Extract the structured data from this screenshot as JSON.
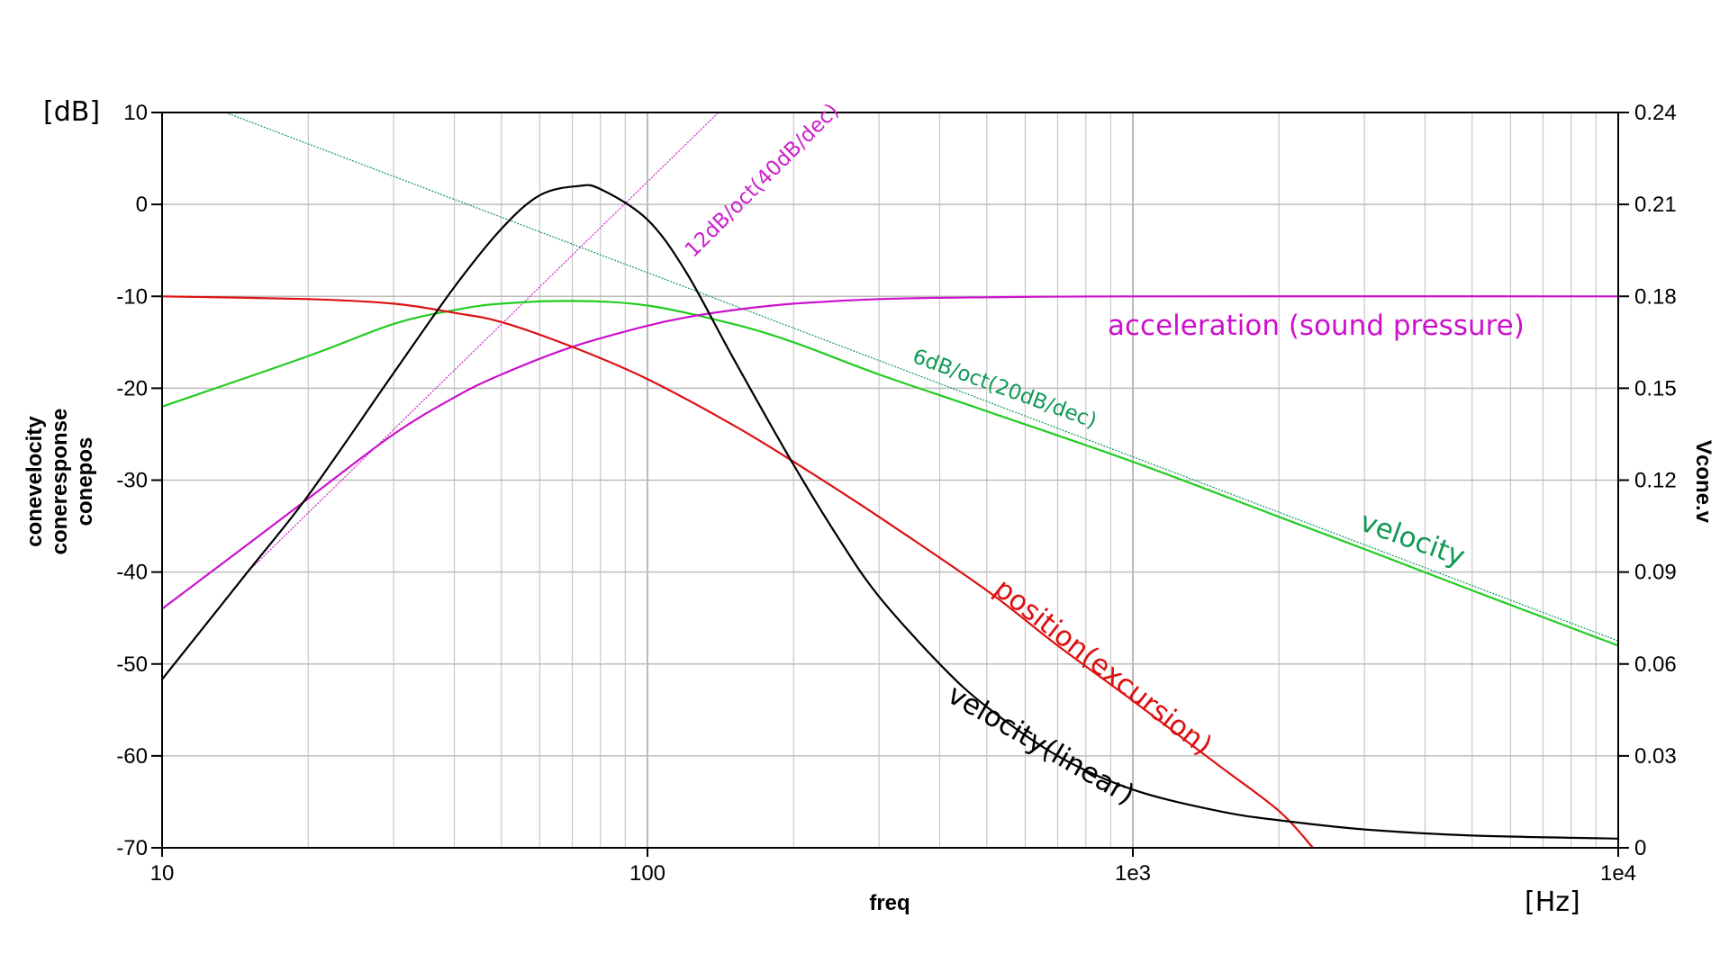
{
  "chart_data": {
    "type": "line",
    "x_scale": "log",
    "xlim": [
      10,
      10000
    ],
    "xlabel": "freq",
    "x_unit": "[Hz]",
    "x_ticks": [
      {
        "value": 10,
        "label": "10"
      },
      {
        "value": 100,
        "label": "100"
      },
      {
        "value": 1000,
        "label": "1e3"
      },
      {
        "value": 10000,
        "label": "1e4"
      }
    ],
    "ylim_left": [
      -70,
      10
    ],
    "y_unit_left": "[dB]",
    "y_ticks_left": [
      10,
      0,
      -10,
      -20,
      -30,
      -40,
      -50,
      -60,
      -70
    ],
    "y_tick_labels_left": [
      "10",
      "0",
      "-10",
      "-20",
      "-30",
      "-40",
      "-50",
      "-60",
      "-70"
    ],
    "ylabels_left": [
      {
        "text": "conevelocity",
        "color": "#22cc22"
      },
      {
        "text": "coneresponse",
        "color": "#cc11cc"
      },
      {
        "text": "conepos",
        "color": "#dd1111"
      }
    ],
    "ylim_right": [
      0,
      0.24
    ],
    "y_ticks_right": [
      0.24,
      0.21,
      0.18,
      0.15,
      0.12,
      0.09,
      0.06,
      0.03,
      0
    ],
    "y_tick_labels_right": [
      "0.24",
      "0.21",
      "0.18",
      "0.15",
      "0.12",
      "0.09",
      "0.06",
      "0.03",
      "0"
    ],
    "ylabel_right": "Vcone.v",
    "grid": true,
    "series": [
      {
        "name": "conevelocity",
        "axis": "left",
        "color": "#22cc22",
        "points": [
          [
            10,
            -22
          ],
          [
            20,
            -16.5
          ],
          [
            30,
            -13
          ],
          [
            40,
            -11.5
          ],
          [
            50,
            -10.8
          ],
          [
            70,
            -10.5
          ],
          [
            100,
            -11
          ],
          [
            150,
            -13
          ],
          [
            200,
            -15
          ],
          [
            300,
            -18.5
          ],
          [
            500,
            -22.5
          ],
          [
            1000,
            -28
          ],
          [
            2000,
            -34
          ],
          [
            3000,
            -37.5
          ],
          [
            5000,
            -42
          ],
          [
            10000,
            -48
          ]
        ]
      },
      {
        "name": "coneresponse",
        "axis": "left",
        "color": "#cc11cc",
        "points": [
          [
            10,
            -44
          ],
          [
            15,
            -37
          ],
          [
            20,
            -32
          ],
          [
            30,
            -25
          ],
          [
            40,
            -21
          ],
          [
            50,
            -18.5
          ],
          [
            70,
            -15.5
          ],
          [
            100,
            -13.2
          ],
          [
            120,
            -12.3
          ],
          [
            150,
            -11.5
          ],
          [
            200,
            -10.8
          ],
          [
            300,
            -10.3
          ],
          [
            500,
            -10.1
          ],
          [
            1000,
            -10
          ],
          [
            10000,
            -10
          ]
        ]
      },
      {
        "name": "conepos",
        "axis": "left",
        "color": "#dd1111",
        "points": [
          [
            10,
            -10
          ],
          [
            20,
            -10.3
          ],
          [
            30,
            -10.8
          ],
          [
            40,
            -11.8
          ],
          [
            50,
            -12.8
          ],
          [
            70,
            -15.5
          ],
          [
            100,
            -19
          ],
          [
            150,
            -24
          ],
          [
            200,
            -28
          ],
          [
            300,
            -34
          ],
          [
            500,
            -42
          ],
          [
            700,
            -48
          ],
          [
            1000,
            -54
          ],
          [
            1500,
            -61
          ],
          [
            2000,
            -66
          ],
          [
            2350,
            -70
          ]
        ]
      },
      {
        "name": "Vcone.v",
        "axis": "right",
        "color": "#000000",
        "points": [
          [
            10,
            0.055
          ],
          [
            15,
            0.09
          ],
          [
            20,
            0.115
          ],
          [
            30,
            0.155
          ],
          [
            40,
            0.183
          ],
          [
            50,
            0.202
          ],
          [
            60,
            0.213
          ],
          [
            72,
            0.216
          ],
          [
            80,
            0.215
          ],
          [
            100,
            0.205
          ],
          [
            120,
            0.188
          ],
          [
            150,
            0.16
          ],
          [
            200,
            0.125
          ],
          [
            250,
            0.1
          ],
          [
            300,
            0.082
          ],
          [
            400,
            0.06
          ],
          [
            500,
            0.046
          ],
          [
            700,
            0.03
          ],
          [
            1000,
            0.019
          ],
          [
            1500,
            0.012
          ],
          [
            2000,
            0.009
          ],
          [
            3000,
            0.006
          ],
          [
            5000,
            0.004
          ],
          [
            10000,
            0.003
          ]
        ]
      }
    ],
    "reference_lines": [
      {
        "name": "6dB/oct(20dB/dec)",
        "color": "#119955",
        "points": [
          [
            13.5,
            10
          ],
          [
            10000,
            -47.5
          ]
        ]
      },
      {
        "name": "12dB/oct(40dB/dec)",
        "color": "#cc22cc",
        "points": [
          [
            15,
            -40
          ],
          [
            140,
            10
          ]
        ]
      }
    ],
    "annotations": [
      {
        "text": "acceleration (sound pressure)",
        "color": "#cc11cc"
      },
      {
        "text": "6dB/oct(20dB/dec)",
        "color": "#119955"
      },
      {
        "text": "12dB/oct(40dB/dec)",
        "color": "#cc22cc"
      },
      {
        "text": "velocity",
        "color": "#119955"
      },
      {
        "text": "position(excursion)",
        "color": "#dd1111"
      },
      {
        "text": "velocity(linear)",
        "color": "#000000"
      }
    ]
  }
}
